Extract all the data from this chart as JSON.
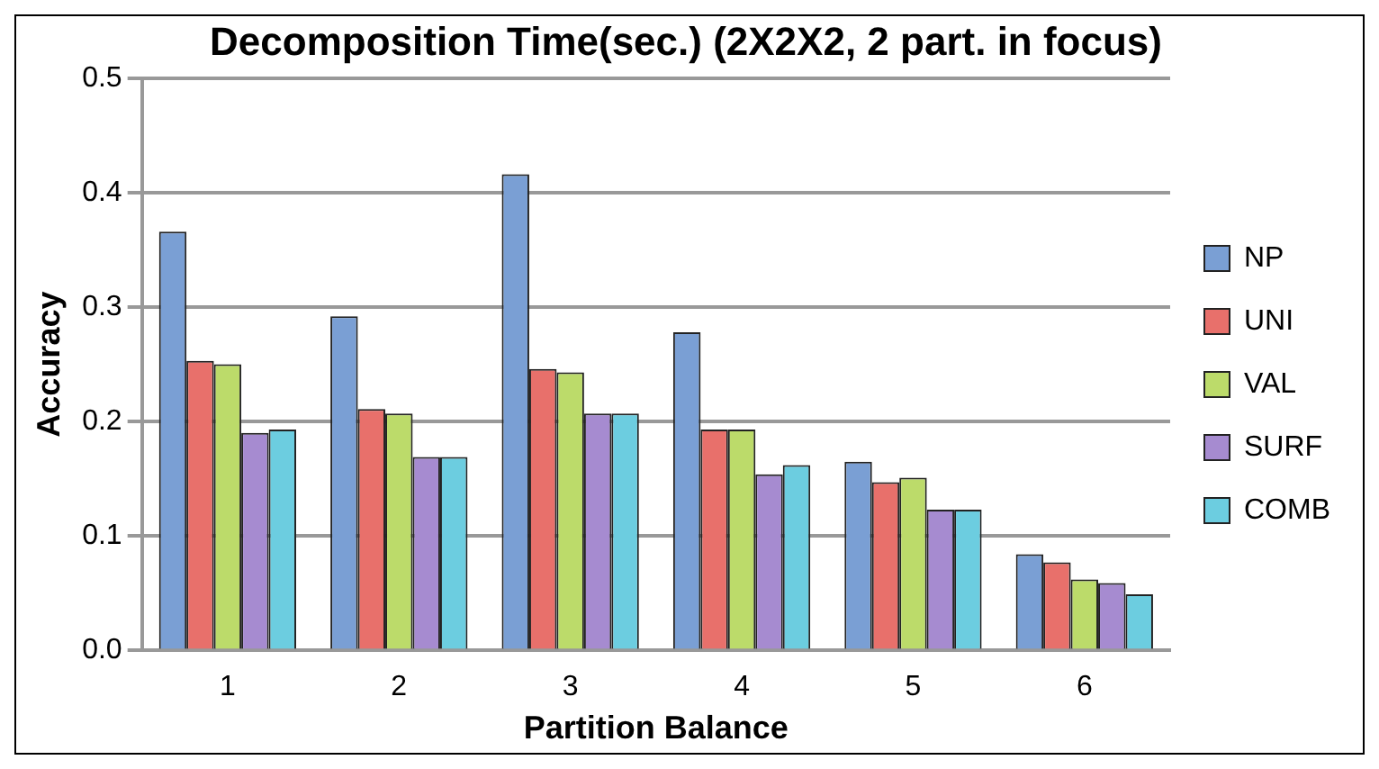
{
  "chart_data": {
    "type": "bar",
    "title": "Decomposition Time(sec.) (2X2X2, 2 part. in focus)",
    "xlabel": "Partition Balance",
    "ylabel": "Accuracy",
    "categories": [
      "1",
      "2",
      "3",
      "4",
      "5",
      "6"
    ],
    "series": [
      {
        "name": "NP",
        "color": "#7a9fd4",
        "values": [
          0.366,
          0.292,
          0.416,
          0.278,
          0.165,
          0.084
        ]
      },
      {
        "name": "UNI",
        "color": "#e8706b",
        "values": [
          0.253,
          0.211,
          0.246,
          0.193,
          0.147,
          0.077
        ]
      },
      {
        "name": "VAL",
        "color": "#bcdb6a",
        "values": [
          0.25,
          0.207,
          0.243,
          0.193,
          0.151,
          0.062
        ]
      },
      {
        "name": "SURF",
        "color": "#a68bd0",
        "values": [
          0.19,
          0.169,
          0.207,
          0.154,
          0.123,
          0.059
        ]
      },
      {
        "name": "COMB",
        "color": "#6ccde0",
        "values": [
          0.193,
          0.169,
          0.207,
          0.162,
          0.123,
          0.049
        ]
      }
    ],
    "ylim": [
      0,
      0.5
    ],
    "yticks": [
      {
        "value": 0,
        "label": "0.0"
      },
      0.1,
      0.2,
      0.3,
      0.4,
      0.5
    ],
    "grid": "y",
    "legend": "right"
  }
}
